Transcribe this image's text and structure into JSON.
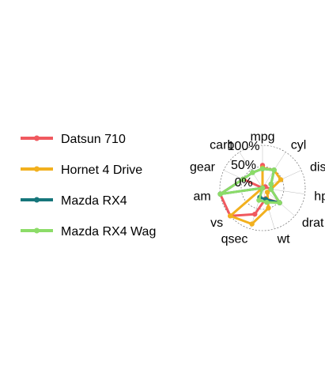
{
  "chart_data": {
    "type": "radar",
    "title": "",
    "axes": [
      "mpg",
      "cyl",
      "disp",
      "hp",
      "drat",
      "wt",
      "qsec",
      "vs",
      "am",
      "gear",
      "carb"
    ],
    "grid_labels": [
      "0%",
      "50%",
      "100%"
    ],
    "range": [
      0,
      1
    ],
    "legend_position": "left",
    "series": [
      {
        "name": "Datsun 710",
        "color": "#f0595f",
        "values": [
          0.53,
          0.0,
          0.07,
          0.2,
          0.53,
          0.26,
          0.64,
          1.0,
          1.0,
          0.5,
          0.0
        ]
      },
      {
        "name": "Hornet 4 Drive",
        "color": "#f2b01e",
        "values": [
          0.47,
          0.5,
          0.47,
          0.2,
          0.15,
          0.49,
          0.88,
          1.0,
          0.0,
          0.0,
          0.0
        ]
      },
      {
        "name": "Mazda RX4",
        "color": "#16767b",
        "values": [
          0.45,
          0.5,
          0.22,
          0.2,
          0.53,
          0.28,
          0.23,
          0.0,
          1.0,
          0.5,
          0.43
        ]
      },
      {
        "name": "Mazda RX4 Wag",
        "color": "#8cdc68",
        "values": [
          0.45,
          0.5,
          0.22,
          0.2,
          0.53,
          0.35,
          0.3,
          0.0,
          1.0,
          0.5,
          0.43
        ]
      }
    ]
  }
}
